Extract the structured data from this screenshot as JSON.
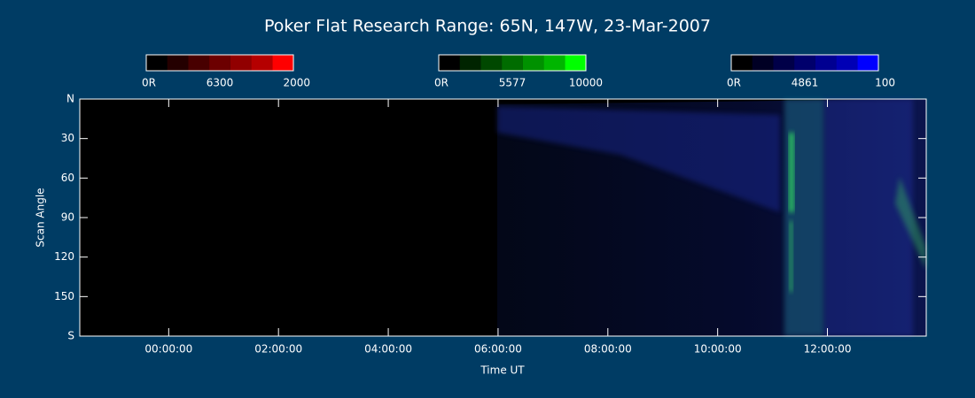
{
  "chart_data": {
    "type": "keogram",
    "title": "Poker Flat Research Range: 65N, 147W, 23-Mar-2007",
    "x_label": "Time UT",
    "y_label": "Scan Angle",
    "xlim": [
      -1.62,
      13.8
    ],
    "xticks": [
      {
        "value": 0,
        "label": "00:00:00"
      },
      {
        "value": 2,
        "label": "02:00:00"
      },
      {
        "value": 4,
        "label": "04:00:00"
      },
      {
        "value": 6,
        "label": "06:00:00"
      },
      {
        "value": 8,
        "label": "08:00:00"
      },
      {
        "value": 10,
        "label": "10:00:00"
      },
      {
        "value": 12,
        "label": "12:00:00"
      }
    ],
    "ylim": [
      0,
      180
    ],
    "yticks": [
      {
        "value": 0,
        "label": "N"
      },
      30,
      60,
      90,
      120,
      150,
      {
        "value": 180,
        "label": "S"
      }
    ],
    "colorbars": [
      {
        "min_label": "0R",
        "line": "6300",
        "max": 2000,
        "color": "#ff0000"
      },
      {
        "min_label": "0R",
        "line": "5577",
        "max": 10000,
        "color": "#00ff00"
      },
      {
        "min_label": "0R",
        "line": "4861",
        "max": 100,
        "color": "#0000ff"
      }
    ]
  }
}
